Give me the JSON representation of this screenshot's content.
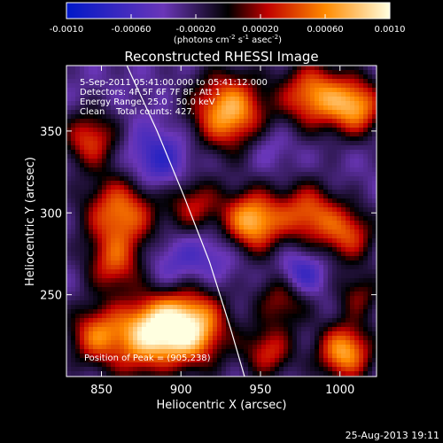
{
  "chart_data": {
    "type": "heatmap",
    "title": "Reconstructed RHESSI Image",
    "colorbar": {
      "ticks": [
        "-0.0010",
        "-0.00060",
        "-0.00020",
        "0.00020",
        "0.00060",
        "0.0010"
      ],
      "tick_values": [
        -0.001,
        -0.0006,
        -0.0002,
        0.0002,
        0.0006,
        0.001
      ],
      "range": [
        -0.001,
        0.001
      ],
      "units_line1": "(photons cm",
      "units_sup1": "-2",
      "units_mid": " s",
      "units_sup2": "-1",
      "units_line2": " asec",
      "units_sup3": "-2",
      "units_end": ")"
    },
    "xlabel": "Heliocentric X (arcsec)",
    "ylabel": "Heliocentric Y (arcsec)",
    "xlim": [
      828,
      1023
    ],
    "ylim": [
      200,
      390
    ],
    "xticks": [
      850,
      900,
      950,
      1000
    ],
    "yticks": [
      250,
      300,
      350
    ],
    "xtick_labels": [
      "850",
      "900",
      "950",
      "1000"
    ],
    "ytick_labels": [
      "250",
      "300",
      "350"
    ],
    "annotations": {
      "time": "5-Sep-2011 05:41:00.000 to 05:41:12.000",
      "detectors": "Detectors: 4F 5F 6F 7F 8F, Att 1",
      "energy": "Energy Range: 25.0 - 50.0 keV",
      "clean": "Clean    Total counts: 427.",
      "peak": "Position of Peak = (905,238)"
    },
    "blobs": [
      {
        "x": 905,
        "y": 230,
        "v": 1.0,
        "r": 16
      },
      {
        "x": 880,
        "y": 228,
        "v": 0.8,
        "r": 14
      },
      {
        "x": 848,
        "y": 225,
        "v": 0.65,
        "r": 13
      },
      {
        "x": 862,
        "y": 300,
        "v": 0.7,
        "r": 16
      },
      {
        "x": 858,
        "y": 268,
        "v": 0.5,
        "r": 12
      },
      {
        "x": 908,
        "y": 305,
        "v": 0.45,
        "r": 12
      },
      {
        "x": 930,
        "y": 362,
        "v": 0.85,
        "r": 16
      },
      {
        "x": 983,
        "y": 372,
        "v": 0.7,
        "r": 14
      },
      {
        "x": 1010,
        "y": 365,
        "v": 0.75,
        "r": 12
      },
      {
        "x": 980,
        "y": 300,
        "v": 0.6,
        "r": 13
      },
      {
        "x": 1005,
        "y": 287,
        "v": 0.55,
        "r": 12
      },
      {
        "x": 945,
        "y": 295,
        "v": 0.85,
        "r": 13
      },
      {
        "x": 1003,
        "y": 215,
        "v": 0.8,
        "r": 12
      },
      {
        "x": 965,
        "y": 248,
        "v": 0.45,
        "r": 12
      },
      {
        "x": 955,
        "y": 215,
        "v": 0.5,
        "r": 11
      },
      {
        "x": 1012,
        "y": 250,
        "v": 0.35,
        "r": 10
      },
      {
        "x": 843,
        "y": 345,
        "v": 0.55,
        "r": 12
      },
      {
        "x": 885,
        "y": 332,
        "v": -0.35,
        "r": 14
      },
      {
        "x": 895,
        "y": 268,
        "v": -0.2,
        "r": 12
      },
      {
        "x": 975,
        "y": 262,
        "v": -0.4,
        "r": 10
      },
      {
        "x": 920,
        "y": 275,
        "v": -0.2,
        "r": 12
      },
      {
        "x": 955,
        "y": 342,
        "v": -0.15,
        "r": 10
      },
      {
        "x": 870,
        "y": 205,
        "v": 0.2,
        "r": 10
      }
    ],
    "limb_arc": [
      [
        866,
        390
      ],
      [
        885,
        350
      ],
      [
        902,
        310
      ],
      [
        918,
        270
      ],
      [
        931,
        230
      ],
      [
        940,
        200
      ]
    ]
  },
  "footer": {
    "timestamp": "25-Aug-2013 19:11"
  }
}
